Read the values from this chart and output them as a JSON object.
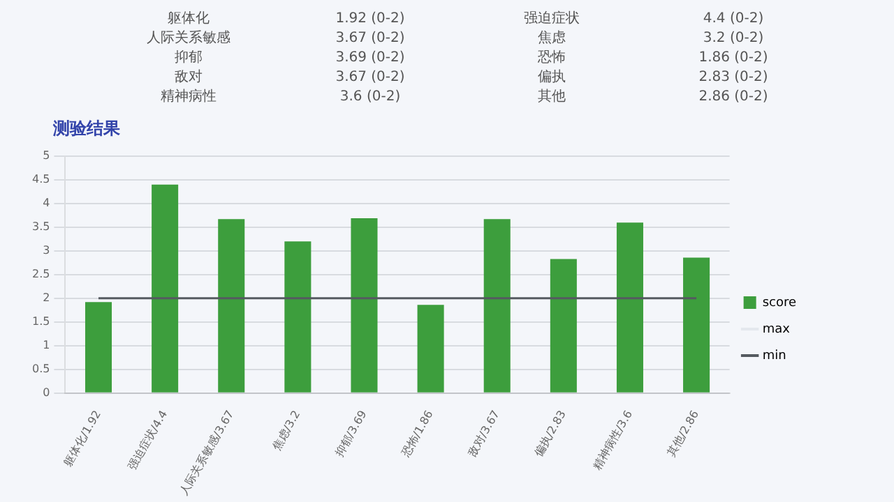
{
  "chart_data": {
    "type": "bar",
    "title": "测验结果",
    "annotations": [
      "躯体化",
      "1.92 (0-2)",
      "强迫症状",
      "4.4 (0-2)",
      "人际关系敏感",
      "3.67 (0-2)",
      "焦虑",
      "3.2 (0-2)",
      "抑郁",
      "3.69 (0-2)",
      "恐怖",
      "1.86 (0-2)",
      "敌对",
      "3.67 (0-2)",
      "偏执",
      "2.83 (0-2)",
      "精神病性",
      "3.6 (0-2)",
      "其他",
      "2.86 (0-2)"
    ],
    "categories": [
      "躯体化/1.92",
      "强迫症状/4.4",
      "人际关系敏感/3.67",
      "焦虑/3.2",
      "抑郁/3.69",
      "恐怖/1.86",
      "敌对/3.67",
      "偏执/2.83",
      "精神病性/3.6",
      "其他/2.86"
    ],
    "series": [
      {
        "name": "score",
        "color": "#3d9e3d",
        "values": [
          1.92,
          4.4,
          3.67,
          3.2,
          3.69,
          1.86,
          3.67,
          2.83,
          3.6,
          2.86
        ]
      },
      {
        "name": "max",
        "type": "line",
        "color": "#e4e8ee",
        "values": [
          null,
          null,
          null,
          null,
          null,
          null,
          null,
          null,
          null,
          null
        ]
      },
      {
        "name": "min",
        "type": "line",
        "color": "#555a60",
        "values": [
          2,
          2,
          2,
          2,
          2,
          2,
          2,
          2,
          2,
          2
        ]
      }
    ],
    "ylim": [
      0,
      5
    ],
    "yticks": [
      0,
      0.5,
      1,
      1.5,
      2,
      2.5,
      3,
      3.5,
      4,
      4.5,
      5
    ],
    "grid": "y",
    "legend": "right",
    "marker": "none"
  }
}
